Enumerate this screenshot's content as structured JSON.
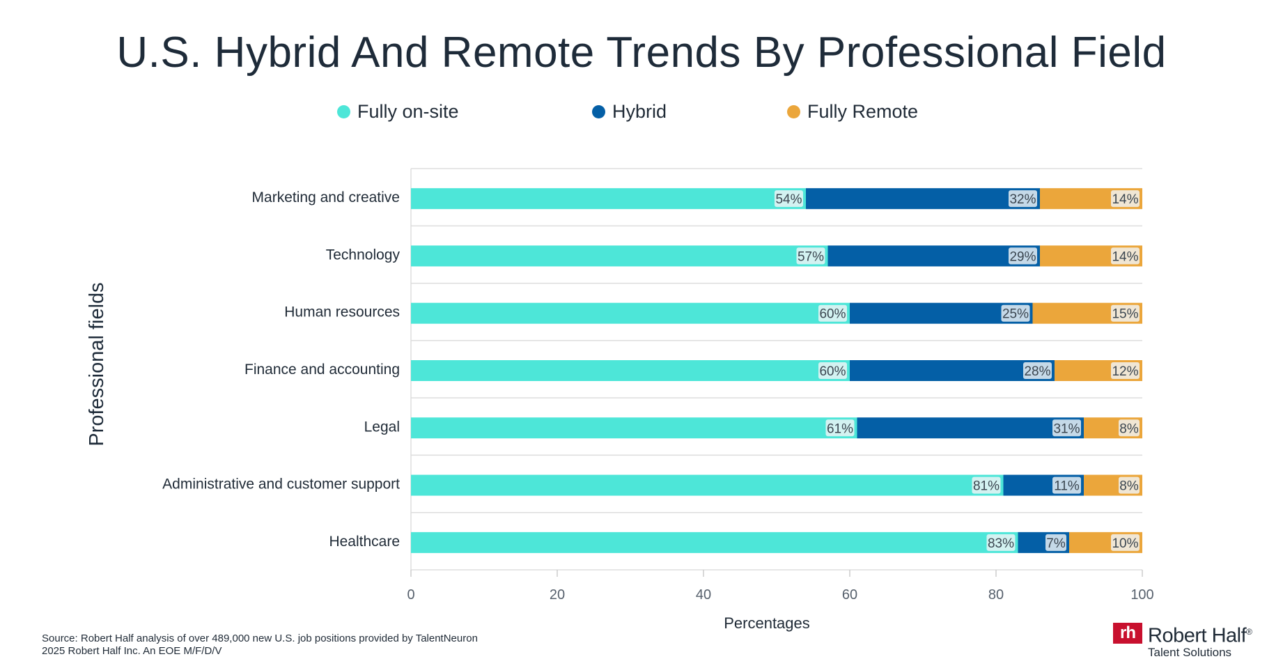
{
  "chart_data": {
    "type": "bar",
    "orientation": "horizontal",
    "stacked": true,
    "title": "U.S. Hybrid And Remote Trends By Professional Field",
    "xlabel": "Percentages",
    "ylabel": "Professional fields",
    "xlim": [
      0,
      100
    ],
    "xticks": [
      "0",
      "20",
      "40",
      "60",
      "80",
      "100"
    ],
    "grid": true,
    "legend_position": "top",
    "categories": [
      "Marketing and creative",
      "Technology",
      "Human resources",
      "Finance and accounting",
      "Legal",
      "Administrative and customer support",
      "Healthcare"
    ],
    "series": [
      {
        "name": "Fully on-site",
        "color": "#4de6d8",
        "values": [
          54,
          57,
          60,
          60,
          61,
          81,
          83
        ],
        "labels": [
          "54%",
          "57%",
          "60%",
          "60%",
          "61%",
          "81%",
          "83%"
        ]
      },
      {
        "name": "Hybrid",
        "color": "#045fa6",
        "values": [
          32,
          29,
          25,
          28,
          31,
          11,
          7
        ],
        "labels": [
          "32%",
          "29%",
          "25%",
          "28%",
          "31%",
          "11%",
          "7%"
        ]
      },
      {
        "name": "Fully Remote",
        "color": "#eba63b",
        "values": [
          14,
          14,
          15,
          12,
          8,
          8,
          10
        ],
        "labels": [
          "14%",
          "14%",
          "15%",
          "12%",
          "8%",
          "8%",
          "10%"
        ]
      }
    ]
  },
  "footer": {
    "source": "Source: Robert Half analysis of over 489,000 new U.S. job positions provided by TalentNeuron",
    "copyright": "2025 Robert Half Inc. An EOE M/F/D/V"
  },
  "logo": {
    "mark": "rh",
    "name": "Robert Half",
    "registered": "®",
    "tagline": "Talent Solutions"
  }
}
